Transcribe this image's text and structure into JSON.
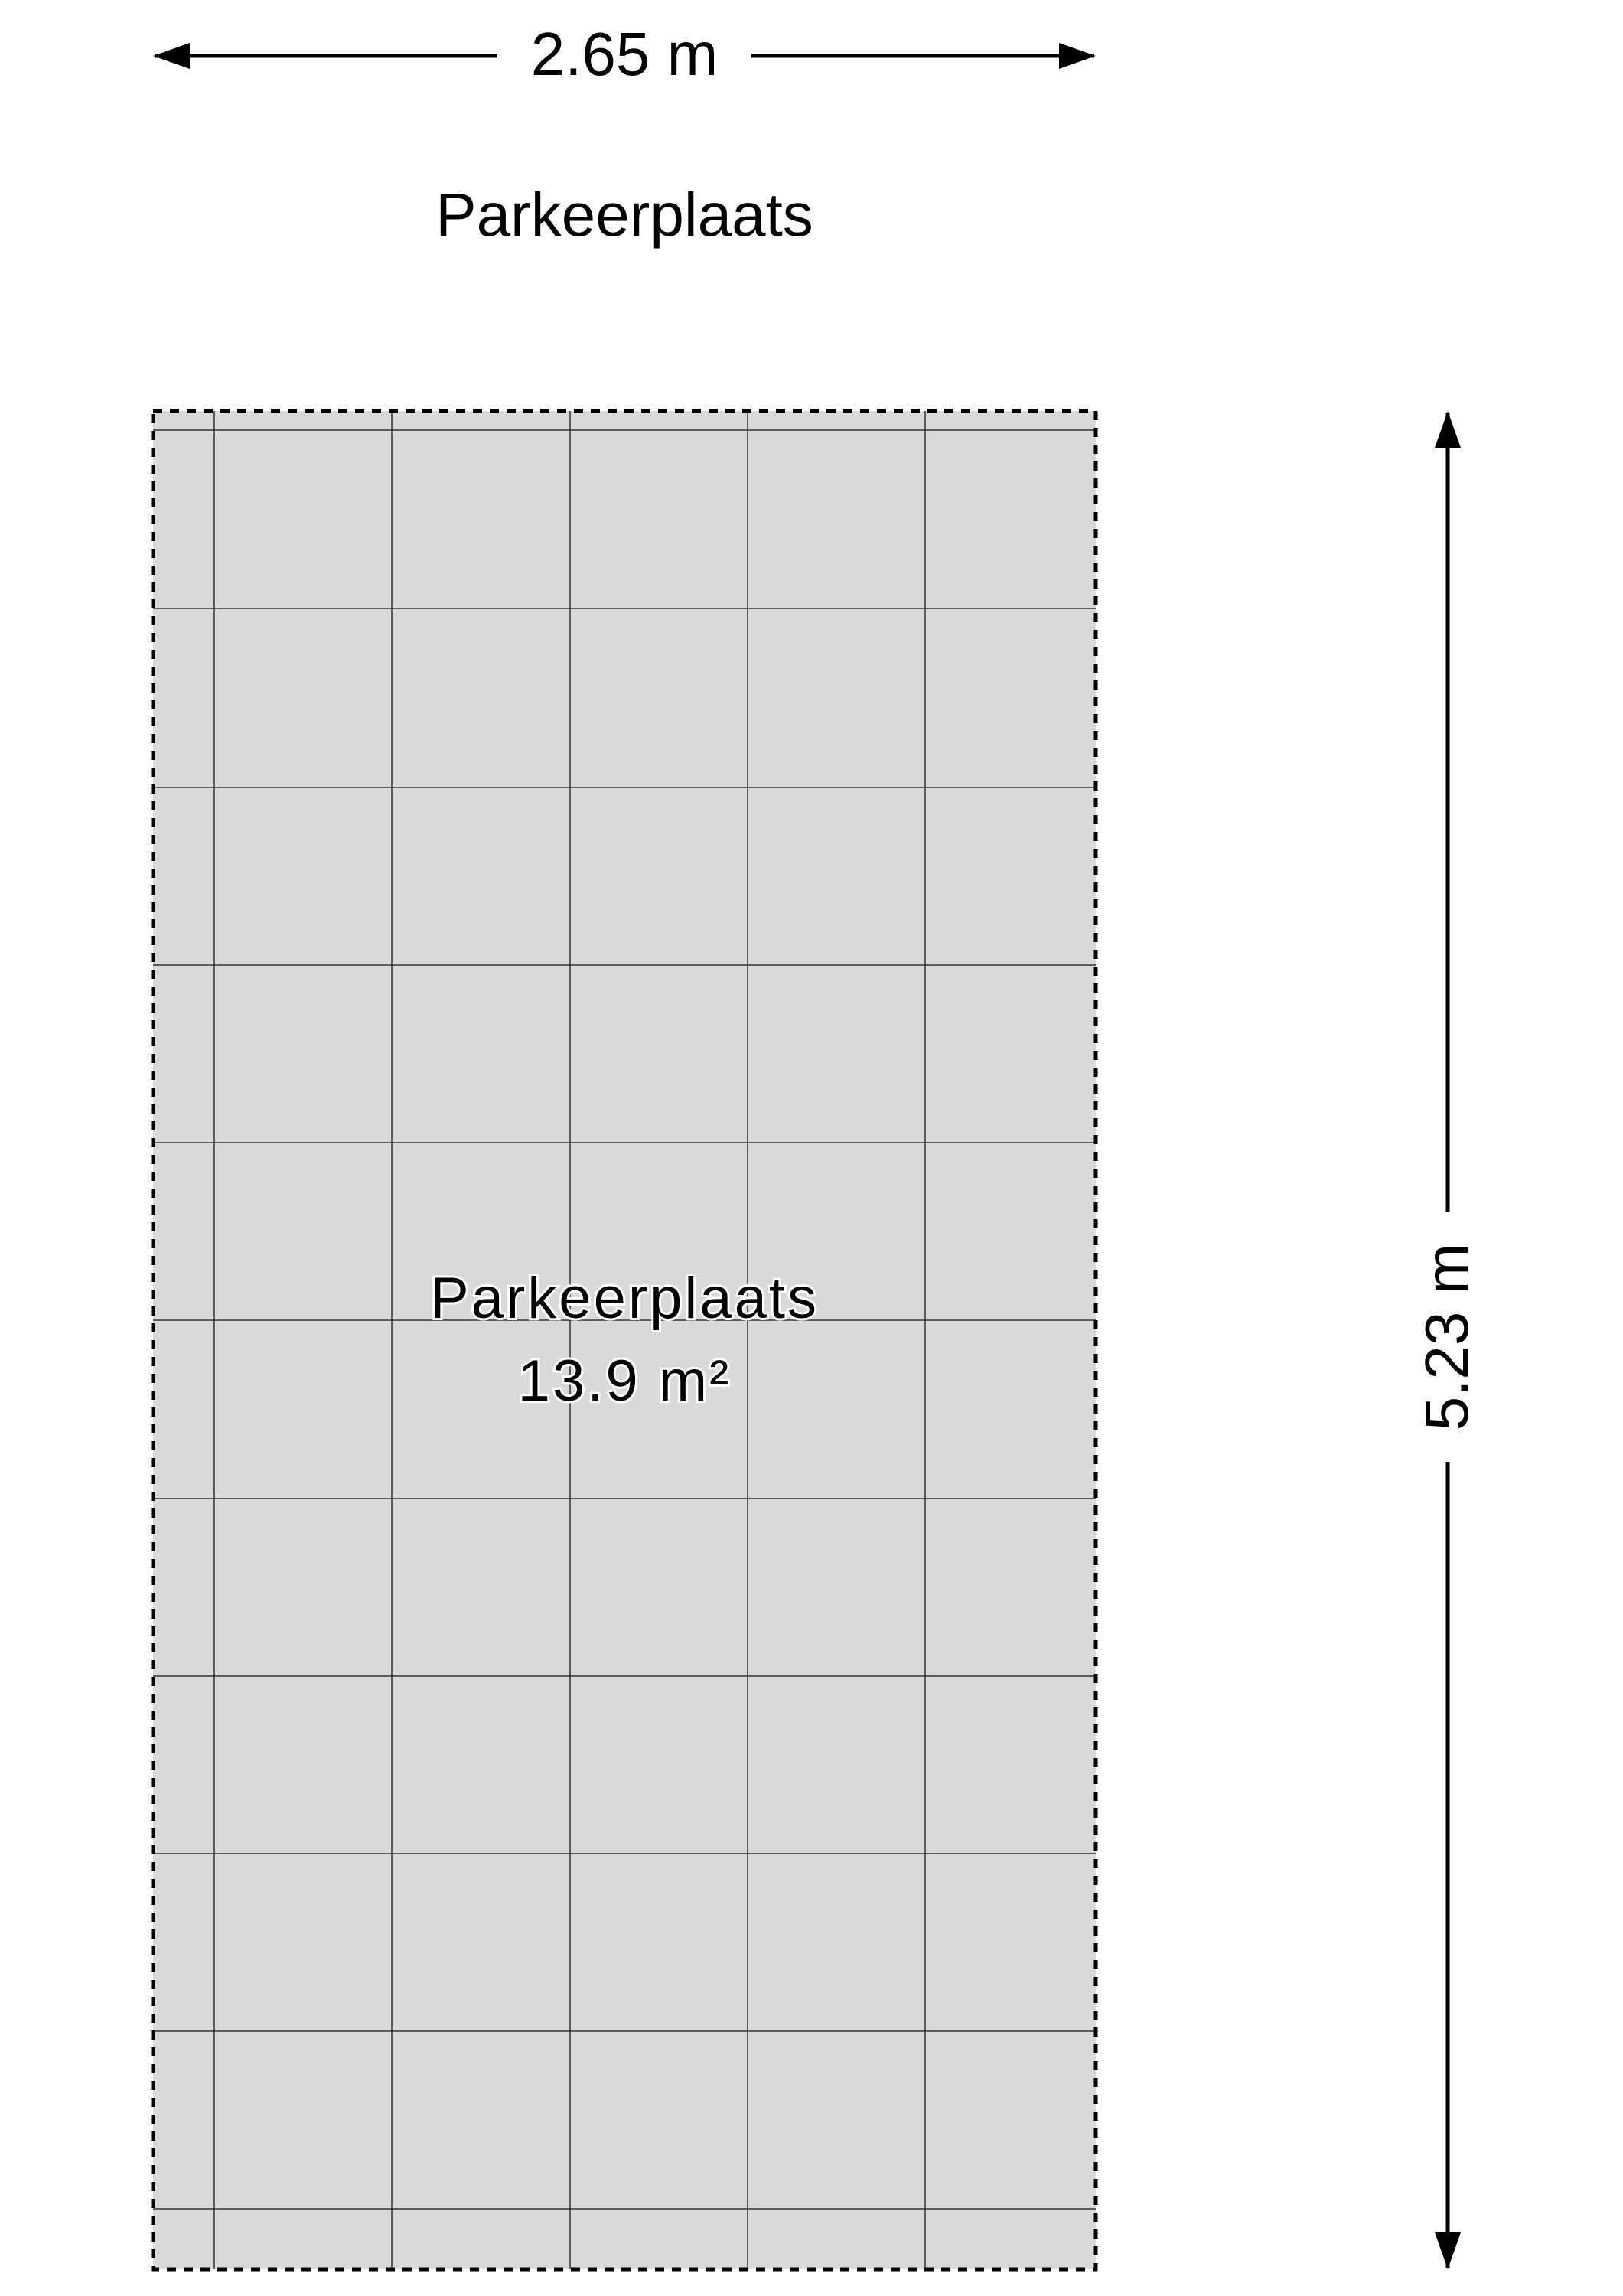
{
  "plan": {
    "width_dimension": "2.65 m",
    "height_dimension": "5.23 m",
    "title": "Parkeerplaats",
    "room": {
      "name": "Parkeerplaats",
      "area": "13.9 m²"
    }
  },
  "colors": {
    "floor_fill": "#d9d9d9",
    "grid_line": "#333333",
    "outline": "#000000"
  }
}
